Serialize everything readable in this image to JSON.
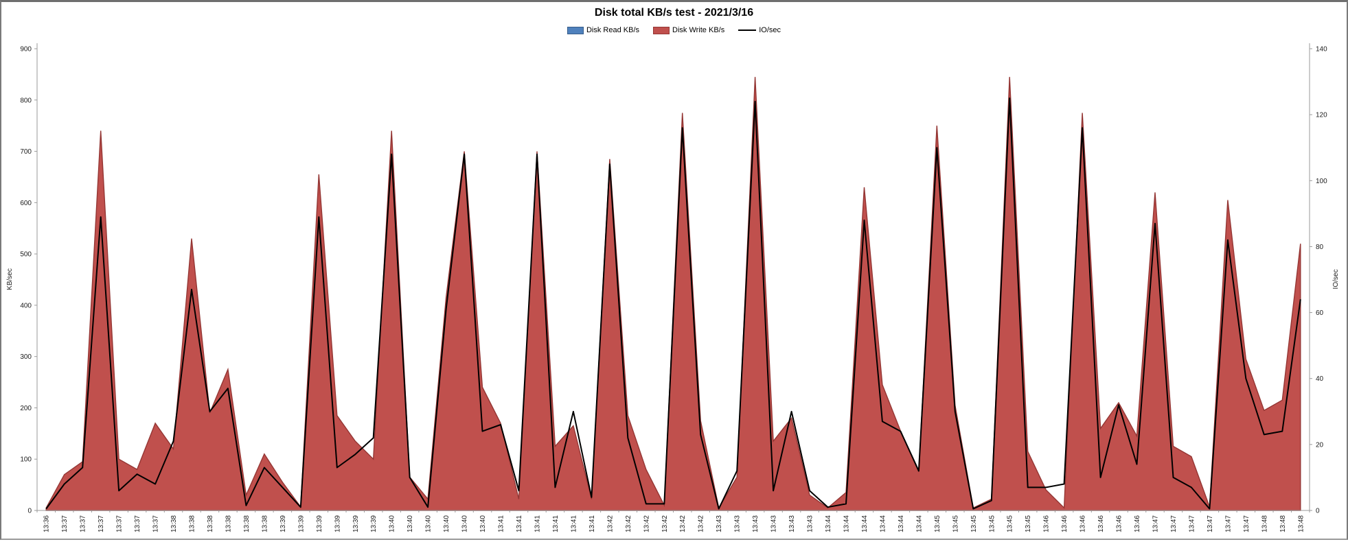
{
  "chart_data": {
    "type": "area",
    "title": "Disk total KB/s test - 2021/3/16",
    "legend_position": "top",
    "grid": false,
    "legend": [
      {
        "label": "Disk Read KB/s",
        "color": "#4F81BD",
        "border": "#385D8A",
        "kind": "area"
      },
      {
        "label": "Disk Write KB/s",
        "color": "#C0504D",
        "border": "#943634",
        "kind": "area"
      },
      {
        "label": "IO/sec",
        "color": "#000000",
        "kind": "line"
      }
    ],
    "left_axis": {
      "title": "KB/sec",
      "min": 0,
      "max": 900,
      "step": 100
    },
    "right_axis": {
      "title": "IO/sec",
      "min": 0,
      "max": 140,
      "step": 20
    },
    "categories": [
      "13:36",
      "13:37",
      "13:37",
      "13:37",
      "13:37",
      "13:37",
      "13:37",
      "13:38",
      "13:38",
      "13:38",
      "13:38",
      "13:38",
      "13:38",
      "13:39",
      "13:39",
      "13:39",
      "13:39",
      "13:39",
      "13:39",
      "13:40",
      "13:40",
      "13:40",
      "13:40",
      "13:40",
      "13:40",
      "13:41",
      "13:41",
      "13:41",
      "13:41",
      "13:41",
      "13:41",
      "13:42",
      "13:42",
      "13:42",
      "13:42",
      "13:42",
      "13:42",
      "13:43",
      "13:43",
      "13:43",
      "13:43",
      "13:43",
      "13:43",
      "13:44",
      "13:44",
      "13:44",
      "13:44",
      "13:44",
      "13:44",
      "13:45",
      "13:45",
      "13:45",
      "13:45",
      "13:45",
      "13:45",
      "13:46",
      "13:46",
      "13:46",
      "13:46",
      "13:46",
      "13:46",
      "13:47",
      "13:47",
      "13:47",
      "13:47",
      "13:47",
      "13:47",
      "13:48",
      "13:48",
      "13:48"
    ],
    "series": [
      {
        "name": "Disk Read KB/s",
        "axis": "left",
        "values": [
          0,
          0,
          0,
          0,
          0,
          0,
          0,
          0,
          0,
          0,
          0,
          0,
          0,
          0,
          0,
          0,
          0,
          0,
          0,
          0,
          0,
          0,
          0,
          0,
          0,
          0,
          0,
          0,
          0,
          0,
          0,
          0,
          0,
          0,
          0,
          0,
          0,
          0,
          0,
          0,
          0,
          0,
          0,
          0,
          0,
          0,
          0,
          0,
          0,
          0,
          0,
          0,
          0,
          0,
          0,
          0,
          0,
          0,
          0,
          0,
          0,
          0,
          0,
          0,
          0,
          0,
          0,
          0,
          0,
          0
        ]
      },
      {
        "name": "Disk Write KB/s",
        "axis": "left",
        "values": [
          5,
          70,
          95,
          740,
          100,
          80,
          170,
          120,
          530,
          190,
          275,
          30,
          110,
          55,
          7,
          655,
          185,
          135,
          100,
          740,
          65,
          22,
          415,
          700,
          240,
          170,
          22,
          700,
          125,
          165,
          22,
          685,
          185,
          80,
          10,
          775,
          175,
          5,
          65,
          845,
          135,
          180,
          30,
          5,
          35,
          630,
          245,
          155,
          75,
          750,
          205,
          5,
          22,
          845,
          115,
          40,
          5,
          775,
          160,
          210,
          145,
          620,
          125,
          105,
          7,
          605,
          295,
          195,
          215,
          520
        ]
      },
      {
        "name": "IO/sec",
        "axis": "right",
        "values": [
          0.5,
          8,
          13,
          89,
          6,
          11,
          8,
          21,
          67,
          30,
          37,
          1.5,
          13,
          7,
          1,
          89,
          13,
          17,
          22,
          108,
          10,
          1,
          61,
          108,
          24,
          26,
          6,
          108,
          7,
          30,
          4,
          105,
          22,
          2,
          2,
          116,
          23,
          0.5,
          12,
          124,
          6,
          30,
          6,
          1,
          2,
          88,
          27,
          24,
          12,
          110,
          30,
          0.5,
          3,
          125,
          7,
          7,
          8,
          116,
          10,
          32,
          14,
          87,
          10,
          7,
          0.5,
          82,
          40,
          23,
          24,
          64
        ]
      }
    ]
  }
}
